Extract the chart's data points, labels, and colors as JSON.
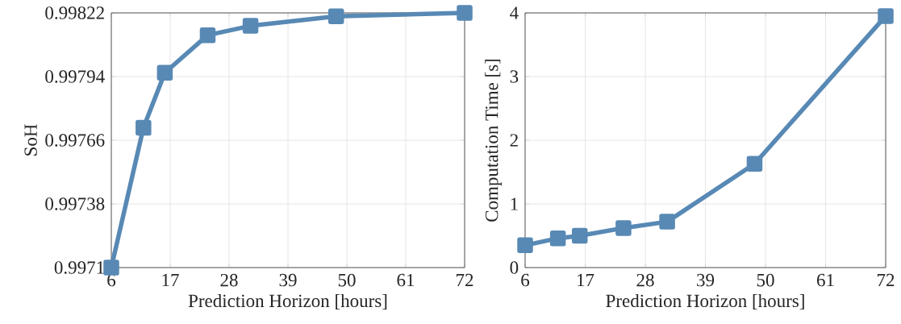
{
  "chart_data": [
    {
      "type": "line",
      "xlabel": "Prediction Horizon [hours]",
      "ylabel": "SoH",
      "x": [
        6,
        12,
        16,
        24,
        32,
        48,
        72
      ],
      "series": [
        {
          "color": "#5889b5",
          "values": [
            0.9971,
            0.997715,
            0.997957,
            0.998122,
            0.998163,
            0.998205,
            0.99822
          ]
        }
      ],
      "xlim": [
        6,
        72
      ],
      "xticks": [
        6,
        17,
        28,
        39,
        50,
        61,
        72
      ],
      "ylim": [
        0.9971,
        0.99822
      ],
      "yticks": [
        0.9971,
        0.99738,
        0.99766,
        0.99794,
        0.99822
      ],
      "grid": true,
      "marker": "square",
      "line_style": "solid"
    },
    {
      "type": "line",
      "xlabel": "Prediction Horizon [hours]",
      "ylabel": "Computation Time [s]",
      "x": [
        6,
        12,
        16,
        24,
        32,
        48,
        72
      ],
      "series": [
        {
          "color": "#5889b5",
          "values": [
            0.35,
            0.46,
            0.5,
            0.62,
            0.72,
            1.63,
            3.95
          ]
        }
      ],
      "xlim": [
        6,
        72
      ],
      "xticks": [
        6,
        17,
        28,
        39,
        50,
        61,
        72
      ],
      "ylim": [
        0,
        4
      ],
      "yticks": [
        0,
        1,
        2,
        3,
        4
      ],
      "grid": true,
      "marker": "square",
      "line_style": "solid"
    }
  ]
}
